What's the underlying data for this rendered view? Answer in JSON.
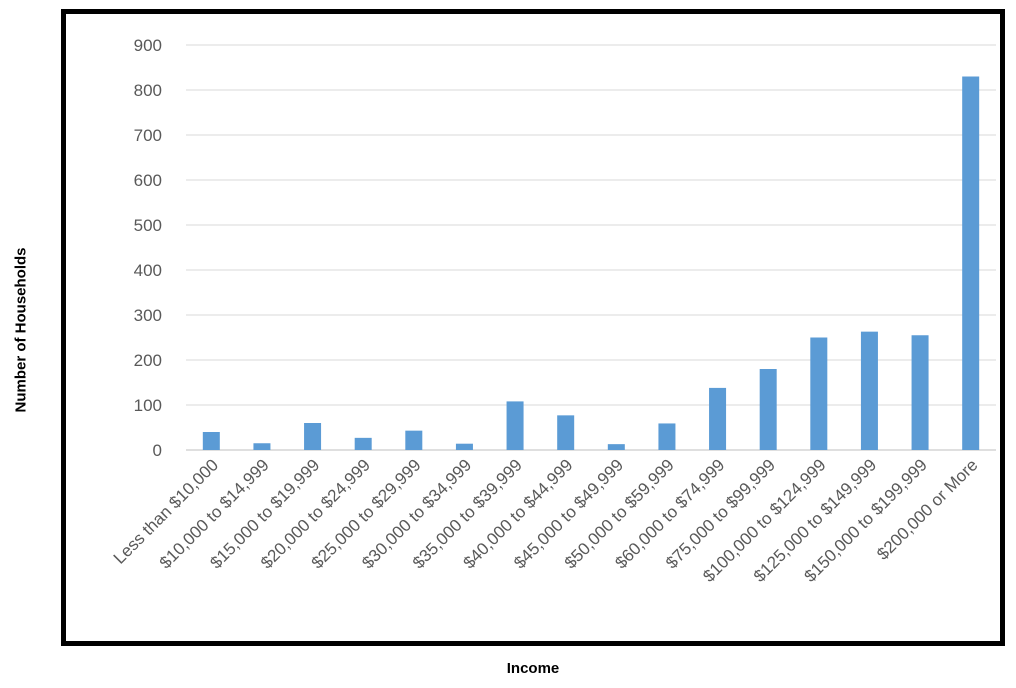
{
  "chart_data": {
    "type": "bar",
    "title": "",
    "xlabel": "Income",
    "ylabel": "Number of Households",
    "categories": [
      "Less than $10,000",
      "$10,000 to $14,999",
      "$15,000 to $19,999",
      "$20,000 to $24,999",
      "$25,000 to $29,999",
      "$30,000 to $34,999",
      "$35,000 to $39,999",
      "$40,000 to $44,999",
      "$45,000 to $49,999",
      "$50,000 to $59,999",
      "$60,000 to $74,999",
      "$75,000 to $99,999",
      "$100,000 to $124,999",
      "$125,000 to $149,999",
      "$150,000 to $199,999",
      "$200,000 or More"
    ],
    "values": [
      40,
      15,
      60,
      27,
      43,
      14,
      108,
      77,
      13,
      59,
      138,
      180,
      250,
      263,
      255,
      830
    ],
    "ylim": [
      0,
      900
    ],
    "yticks": [
      0,
      100,
      200,
      300,
      400,
      500,
      600,
      700,
      800,
      900
    ],
    "grid": true,
    "legend": "none",
    "colors": {
      "bar": "#5B9BD5",
      "grid": "#D9D9D9",
      "axis": "#BFBFBF",
      "text": "#595959"
    }
  }
}
